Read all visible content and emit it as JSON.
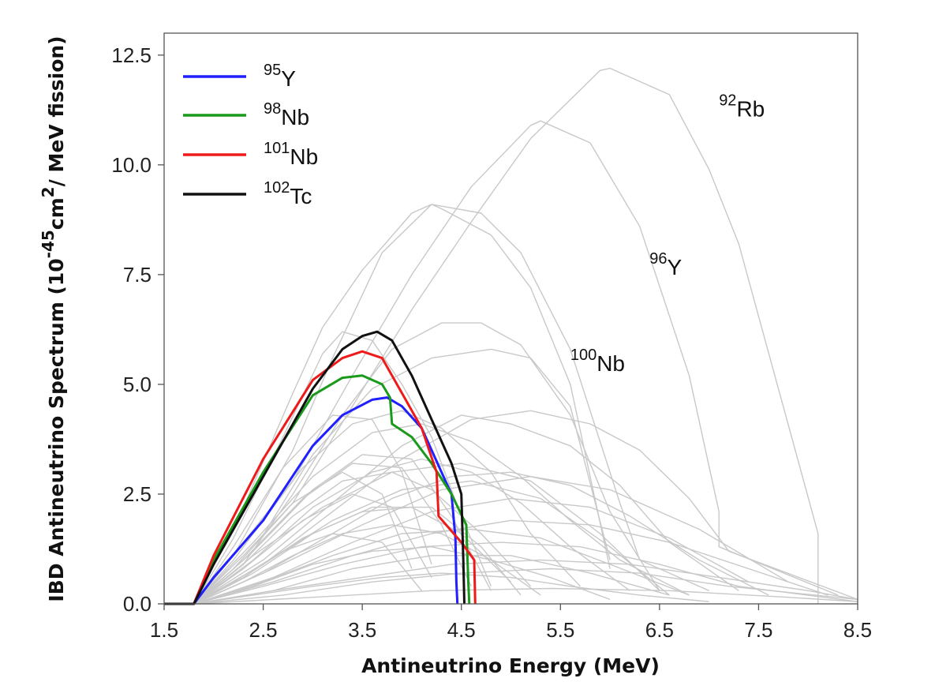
{
  "chart_data": {
    "type": "line",
    "xlabel": "Antineutrino Energy (MeV)",
    "ylabel": {
      "pre": "IBD Antineutrino Spectrum (10",
      "exp1": "-45",
      "mid": "cm",
      "exp2": "2",
      "post": "/ MeV fission)"
    },
    "xlim": [
      1.5,
      8.5
    ],
    "ylim": [
      0,
      13
    ],
    "x_ticks": [
      "1.5",
      "2.5",
      "3.5",
      "4.5",
      "5.5",
      "6.5",
      "7.5",
      "8.5"
    ],
    "y_ticks": [
      "0.0",
      "2.5",
      "5.0",
      "7.5",
      "10.0",
      "12.5"
    ],
    "legend_position": "top-left",
    "highlight_series": [
      {
        "iso": "Y",
        "mass": "95",
        "color": "#1f1fff",
        "x": [
          1.5,
          1.8,
          2.0,
          2.5,
          3.0,
          3.3,
          3.6,
          3.75,
          3.9,
          4.1,
          4.3,
          4.4,
          4.44,
          4.45,
          4.46
        ],
        "y": [
          0,
          0,
          0.6,
          1.9,
          3.6,
          4.3,
          4.65,
          4.7,
          4.5,
          4.0,
          3.0,
          2.5,
          1.5,
          0.5,
          0
        ]
      },
      {
        "iso": "Nb",
        "mass": "98",
        "color": "#1a9a1a",
        "x": [
          1.5,
          1.8,
          2.0,
          2.5,
          3.0,
          3.3,
          3.5,
          3.7,
          3.78,
          3.8,
          4.0,
          4.2,
          4.4,
          4.55,
          4.57,
          4.58
        ],
        "y": [
          0,
          0,
          1.0,
          3.0,
          4.75,
          5.15,
          5.2,
          5.0,
          4.7,
          4.1,
          3.8,
          3.2,
          2.5,
          1.8,
          0.5,
          0
        ]
      },
      {
        "iso": "Nb",
        "mass": "101",
        "color": "#ee1a1a",
        "x": [
          1.5,
          1.8,
          2.0,
          2.5,
          3.0,
          3.3,
          3.5,
          3.7,
          3.9,
          4.1,
          4.25,
          4.27,
          4.5,
          4.63,
          4.64
        ],
        "y": [
          0,
          0,
          1.1,
          3.3,
          5.1,
          5.6,
          5.75,
          5.6,
          4.8,
          4.0,
          3.0,
          2.0,
          1.4,
          1.0,
          0
        ]
      },
      {
        "iso": "Tc",
        "mass": "102",
        "color": "#111111",
        "x": [
          1.5,
          1.8,
          2.0,
          2.5,
          3.0,
          3.3,
          3.5,
          3.65,
          3.8,
          4.0,
          4.2,
          4.4,
          4.5,
          4.52,
          4.53
        ],
        "y": [
          0,
          0,
          0.9,
          2.9,
          4.9,
          5.8,
          6.1,
          6.2,
          6.0,
          5.2,
          4.2,
          3.2,
          2.5,
          1.0,
          0
        ]
      }
    ],
    "annotations": [
      {
        "iso": "Rb",
        "mass": "92",
        "x": 7.1,
        "y": 11.1
      },
      {
        "iso": "Y",
        "mass": "96",
        "x": 6.4,
        "y": 7.5
      },
      {
        "iso": "Nb",
        "mass": "100",
        "x": 5.6,
        "y": 5.3
      }
    ],
    "background_series_color": "#c8c8c8",
    "background_series": [
      {
        "x": [
          1.8,
          2.2,
          2.8,
          3.4,
          4.0,
          4.6,
          5.2,
          5.9,
          6.0,
          6.6,
          7.0,
          7.3,
          8.1,
          8.1
        ],
        "y": [
          0,
          0.8,
          2.3,
          4.5,
          6.7,
          8.7,
          10.6,
          12.15,
          12.2,
          11.6,
          9.9,
          8.2,
          1.6,
          0
        ]
      },
      {
        "x": [
          1.8,
          2.2,
          2.8,
          3.4,
          4.0,
          4.6,
          5.2,
          5.3,
          5.8,
          6.3,
          6.8,
          7.1,
          7.1,
          8.3
        ],
        "y": [
          0,
          1.0,
          2.8,
          5.2,
          7.5,
          9.5,
          10.9,
          11.0,
          10.5,
          8.6,
          5.2,
          2.1,
          1.3,
          0.2
        ]
      },
      {
        "x": [
          1.8,
          2.2,
          2.8,
          3.2,
          3.7,
          4.2,
          4.7,
          5.1,
          5.6,
          6.1,
          6.3,
          7.0
        ],
        "y": [
          0,
          1.1,
          3.5,
          5.6,
          8.0,
          9.1,
          8.9,
          8.0,
          5.8,
          2.3,
          1.0,
          0.3
        ]
      },
      {
        "x": [
          1.8,
          2.3,
          2.8,
          3.1,
          3.5,
          4.0,
          4.2,
          4.3,
          4.8,
          5.2,
          5.6,
          6.0
        ],
        "y": [
          0,
          2.2,
          4.8,
          6.3,
          7.6,
          8.9,
          9.1,
          9.0,
          8.4,
          7.2,
          5.0,
          0.8
        ]
      },
      {
        "x": [
          1.8,
          2.3,
          2.8,
          3.3,
          3.8,
          4.3,
          4.7,
          5.1,
          5.6,
          6.0,
          6.5
        ],
        "y": [
          0,
          0.9,
          2.5,
          4.3,
          5.8,
          6.4,
          6.4,
          5.9,
          4.3,
          2.1,
          0.3
        ]
      },
      {
        "x": [
          1.8,
          2.4,
          3.0,
          3.6,
          4.2,
          4.8,
          5.2,
          5.6,
          6.0
        ],
        "y": [
          0,
          1.2,
          3.4,
          4.9,
          5.6,
          5.8,
          5.6,
          4.5,
          1.0
        ]
      },
      {
        "x": [
          1.8,
          2.2,
          2.7,
          3.1,
          3.3,
          3.6,
          3.9,
          4.2,
          4.5,
          4.8
        ],
        "y": [
          0,
          1.5,
          3.8,
          5.7,
          6.2,
          6.0,
          5.0,
          3.8,
          2.0,
          0.4
        ]
      },
      {
        "x": [
          1.8,
          2.5,
          3.2,
          3.9,
          4.6,
          5.2,
          5.8,
          6.3,
          6.8,
          7.2,
          8.5
        ],
        "y": [
          0,
          0.9,
          2.1,
          3.3,
          4.2,
          4.4,
          4.1,
          3.5,
          2.4,
          1.2,
          0.1
        ]
      },
      {
        "x": [
          1.8,
          2.5,
          3.2,
          3.9,
          4.5,
          5.0,
          5.6,
          6.1,
          6.6,
          7.3
        ],
        "y": [
          0,
          1.0,
          2.3,
          3.6,
          4.3,
          4.1,
          3.6,
          2.7,
          1.4,
          0.3
        ]
      },
      {
        "x": [
          1.8,
          2.4,
          3.0,
          3.6,
          4.1,
          4.6,
          5.1,
          5.6,
          6.1,
          6.8
        ],
        "y": [
          0,
          1.4,
          2.9,
          3.9,
          4.1,
          3.7,
          2.9,
          1.9,
          1.0,
          0.2
        ]
      },
      {
        "x": [
          1.8,
          2.3,
          2.9,
          3.4,
          3.9,
          4.3,
          4.8,
          5.2,
          5.7
        ],
        "y": [
          0,
          1.4,
          3.1,
          4.1,
          4.4,
          4.0,
          3.0,
          1.6,
          0.4
        ]
      },
      {
        "x": [
          1.8,
          2.5,
          3.2,
          3.8,
          4.4,
          5.0,
          5.6,
          6.2,
          6.9,
          7.6
        ],
        "y": [
          0,
          0.7,
          1.6,
          2.4,
          2.9,
          3.0,
          2.7,
          2.0,
          1.0,
          0.2
        ]
      },
      {
        "x": [
          1.8,
          2.4,
          3.0,
          3.6,
          4.1,
          4.6,
          5.1,
          5.6,
          6.2
        ],
        "y": [
          0,
          1.0,
          2.2,
          3.0,
          3.3,
          3.0,
          2.3,
          1.3,
          0.3
        ]
      },
      {
        "x": [
          1.8,
          2.3,
          2.8,
          3.3,
          3.8,
          4.2,
          4.7,
          5.2
        ],
        "y": [
          0,
          0.9,
          2.0,
          2.8,
          3.0,
          2.6,
          1.6,
          0.4
        ]
      },
      {
        "x": [
          1.8,
          2.6,
          3.4,
          4.2,
          5.0,
          5.8,
          6.6,
          7.4,
          8.2
        ],
        "y": [
          0,
          0.5,
          1.1,
          1.6,
          1.9,
          1.8,
          1.4,
          0.8,
          0.2
        ]
      },
      {
        "x": [
          1.8,
          2.5,
          3.2,
          3.9,
          4.6,
          5.3,
          6.0,
          6.8
        ],
        "y": [
          0,
          0.5,
          1.1,
          1.6,
          1.7,
          1.5,
          0.9,
          0.2
        ]
      },
      {
        "x": [
          1.8,
          2.6,
          3.5,
          4.4,
          5.3,
          6.2,
          7.1,
          8.0,
          8.5
        ],
        "y": [
          0,
          0.3,
          0.6,
          0.9,
          1.0,
          0.9,
          0.6,
          0.3,
          0.1
        ]
      },
      {
        "x": [
          1.8,
          2.4,
          3.0,
          3.6,
          4.2,
          4.8,
          5.4,
          6.0
        ],
        "y": [
          0,
          0.4,
          0.9,
          1.2,
          1.3,
          1.0,
          0.6,
          0.1
        ]
      },
      {
        "x": [
          1.8,
          2.7,
          3.6,
          4.5,
          5.4,
          6.3,
          7.2,
          8.5
        ],
        "y": [
          0,
          0.2,
          0.5,
          0.7,
          0.8,
          0.7,
          0.4,
          0.1
        ]
      },
      {
        "x": [
          1.8,
          2.3,
          2.9,
          3.5,
          4.0,
          4.5,
          5.0
        ],
        "y": [
          0,
          0.6,
          1.5,
          2.1,
          2.2,
          1.6,
          0.5
        ]
      },
      {
        "x": [
          1.8,
          2.3,
          2.8,
          3.3,
          3.7,
          4.0
        ],
        "y": [
          0,
          1.1,
          2.3,
          3.0,
          2.5,
          0.8
        ]
      },
      {
        "x": [
          1.8,
          2.6,
          3.5,
          4.3,
          5.2,
          6.0,
          6.9,
          7.8
        ],
        "y": [
          0,
          0.8,
          1.8,
          2.6,
          2.9,
          2.6,
          1.7,
          0.5
        ]
      },
      {
        "x": [
          1.8,
          2.6,
          3.4,
          4.2,
          5.0,
          5.8,
          6.6,
          7.4
        ],
        "y": [
          0,
          0.6,
          1.4,
          2.1,
          2.4,
          2.2,
          1.5,
          0.5
        ]
      },
      {
        "x": [
          1.8,
          2.4,
          3.0,
          3.5,
          4.0,
          4.4,
          4.8
        ],
        "y": [
          0,
          1.2,
          2.6,
          3.4,
          3.3,
          2.0,
          0.3
        ]
      },
      {
        "x": [
          1.8,
          2.3,
          2.9,
          3.4,
          3.9,
          4.3,
          4.6
        ],
        "y": [
          0,
          1.0,
          2.4,
          3.2,
          3.1,
          1.8,
          0.4
        ]
      },
      {
        "x": [
          1.8,
          2.5,
          3.2,
          3.9,
          4.6,
          5.3,
          6.0,
          6.6
        ],
        "y": [
          0,
          0.9,
          1.9,
          2.6,
          2.8,
          2.4,
          1.3,
          0.2
        ]
      },
      {
        "x": [
          1.8,
          2.3,
          2.8,
          3.3,
          3.8,
          4.3,
          4.8,
          5.3
        ],
        "y": [
          0,
          0.5,
          1.1,
          1.6,
          1.8,
          1.6,
          1.0,
          0.2
        ]
      },
      {
        "x": [
          1.8,
          2.5,
          3.3,
          4.1,
          4.9,
          5.7,
          6.5,
          7.3,
          8.5
        ],
        "y": [
          0,
          0.4,
          0.9,
          1.3,
          1.4,
          1.3,
          0.9,
          0.4,
          0.05
        ]
      },
      {
        "x": [
          1.8,
          2.3,
          2.9,
          3.4,
          3.8,
          4.2
        ],
        "y": [
          0,
          0.8,
          1.9,
          2.5,
          2.2,
          0.6
        ]
      },
      {
        "x": [
          1.8,
          2.6,
          3.4,
          4.2,
          5.0,
          5.8,
          6.6
        ],
        "y": [
          0,
          0.3,
          0.8,
          1.1,
          1.1,
          0.7,
          0.2
        ]
      },
      {
        "x": [
          1.8,
          2.2,
          2.7,
          3.2,
          3.6,
          3.9,
          4.2
        ],
        "y": [
          0,
          1.3,
          3.1,
          4.3,
          4.2,
          3.0,
          0.9
        ]
      },
      {
        "x": [
          1.8,
          2.4,
          3.0,
          3.7,
          4.3,
          5.0,
          5.6,
          6.3,
          7.0
        ],
        "y": [
          0,
          0.2,
          0.4,
          0.6,
          0.7,
          0.6,
          0.4,
          0.2,
          0.05
        ]
      },
      {
        "x": [
          1.8,
          2.4,
          3.1,
          3.8,
          4.5,
          5.2,
          5.9,
          6.5
        ],
        "y": [
          0,
          1.1,
          2.2,
          3.0,
          3.2,
          2.8,
          1.6,
          0.3
        ]
      },
      {
        "x": [
          1.8,
          2.4,
          3.0,
          3.6,
          4.2,
          4.7,
          5.1
        ],
        "y": [
          0,
          0.7,
          1.6,
          2.2,
          2.2,
          1.3,
          0.2
        ]
      },
      {
        "x": [
          1.8,
          3.0,
          4.2,
          5.4,
          6.6,
          7.8,
          8.5
        ],
        "y": [
          0,
          0.15,
          0.3,
          0.35,
          0.3,
          0.15,
          0.05
        ]
      },
      {
        "x": [
          1.8,
          2.2,
          2.7,
          3.2,
          3.7,
          4.1
        ],
        "y": [
          0,
          0.5,
          1.2,
          1.6,
          1.4,
          0.3
        ]
      }
    ]
  }
}
